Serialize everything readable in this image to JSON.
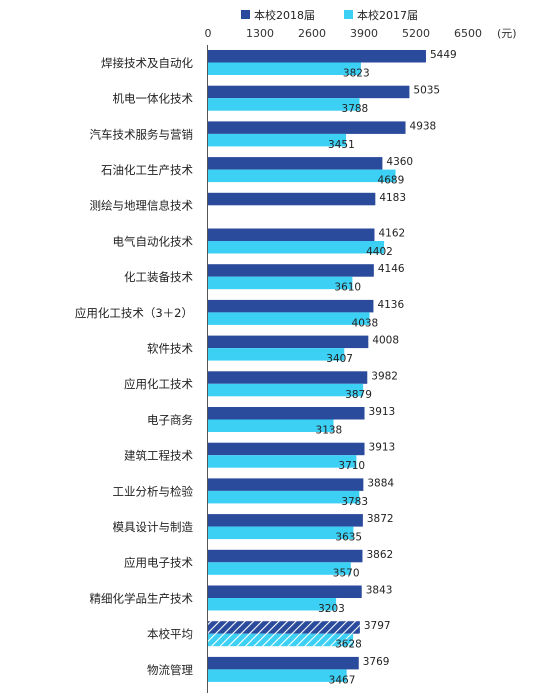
{
  "chart_data": {
    "type": "bar",
    "orientation": "horizontal",
    "unit": "(元)",
    "xlim": [
      0,
      6500
    ],
    "ticks": [
      0,
      1300,
      2600,
      3900,
      5200,
      6500
    ],
    "tick_labels": [
      "0",
      "1300",
      "2600",
      "3900",
      "5200",
      "6500"
    ],
    "legend_position": "top",
    "grid": false,
    "categories": [
      "焊接技术及自动化",
      "机电一体化技术",
      "汽车技术服务与营销",
      "石油化工生产技术",
      "测绘与地理信息技术",
      "电气自动化技术",
      "化工装备技术",
      "应用化工技术（3＋2）",
      "软件技术",
      "应用化工技术",
      "电子商务",
      "建筑工程技术",
      "工业分析与检验",
      "模具设计与制造",
      "应用电子技术",
      "精细化学品生产技术",
      "本校平均",
      "物流管理"
    ],
    "highlight_category": "本校平均",
    "series": [
      {
        "name": "本校2018届",
        "color": "#2a4a9c",
        "values": [
          5449,
          5035,
          4938,
          4360,
          4183,
          4162,
          4146,
          4136,
          4008,
          3982,
          3913,
          3913,
          3884,
          3872,
          3862,
          3843,
          3797,
          3769
        ],
        "labels": [
          "5449",
          "5035",
          "4938",
          "4360",
          "4183",
          "4162",
          "4146",
          "4136",
          "4008",
          "3982",
          "3913",
          "3913",
          "3884",
          "3872",
          "3862",
          "3843",
          "3797",
          "3769"
        ]
      },
      {
        "name": "本校2017届",
        "color": "#3cd0f5",
        "values": [
          3823,
          3788,
          3451,
          4689,
          null,
          4402,
          3610,
          4038,
          3407,
          3879,
          3138,
          3710,
          3783,
          3635,
          3570,
          3203,
          3628,
          3467
        ],
        "labels": [
          "3823",
          "3788",
          "3451",
          "4689",
          null,
          "4402",
          "3610",
          "4038",
          "3407",
          "3879",
          "3138",
          "3710",
          "3783",
          "3635",
          "3570",
          "3203",
          "3628",
          "3467"
        ]
      }
    ]
  }
}
